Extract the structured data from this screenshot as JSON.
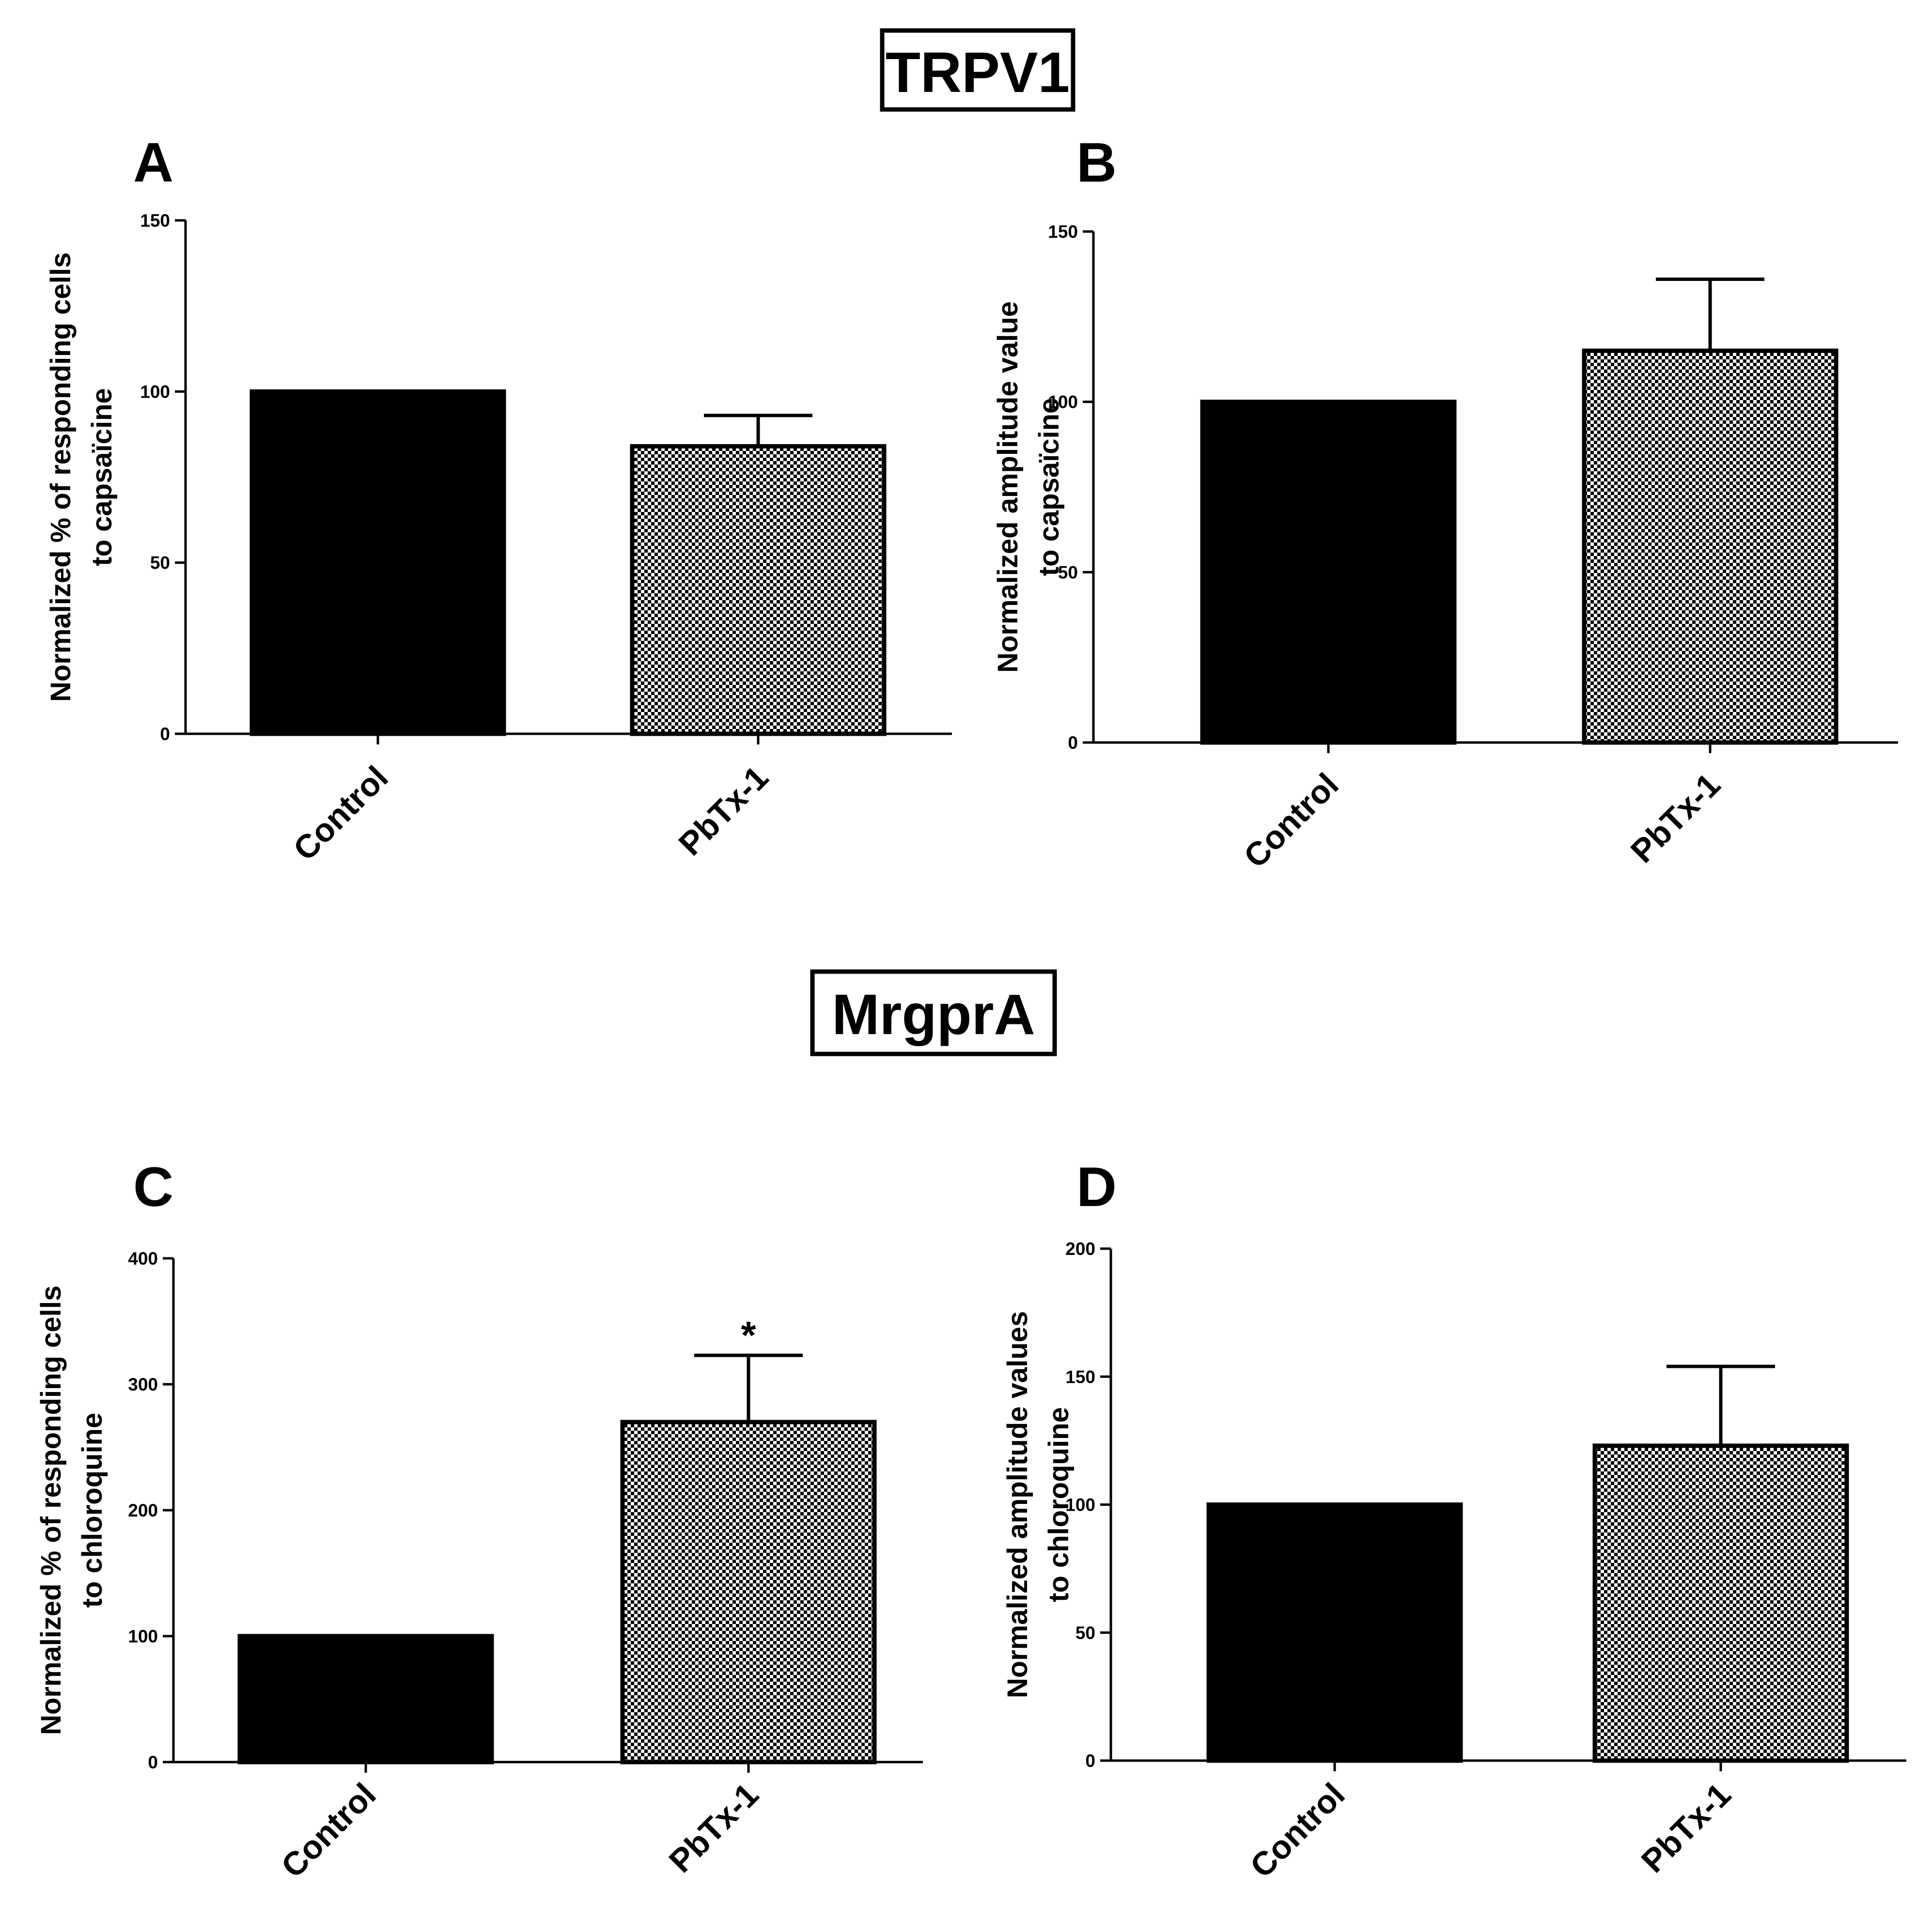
{
  "figure": {
    "sections": [
      {
        "title": "TRPV1"
      },
      {
        "title": "MrgprA"
      }
    ]
  },
  "chart_data": [
    {
      "panel": "A",
      "type": "bar",
      "section": "TRPV1",
      "categories": [
        "Control",
        "PbTx-1"
      ],
      "values": [
        100,
        84
      ],
      "error_plus": [
        null,
        9
      ],
      "bar_styles": [
        "solid-black",
        "checkerboard"
      ],
      "ylabel_lines": [
        "Normalized % of responding cells",
        "to capsaïcine"
      ],
      "ylim": [
        0,
        150
      ],
      "yticks": [
        0,
        50,
        100,
        150
      ],
      "annotations": []
    },
    {
      "panel": "B",
      "type": "bar",
      "section": "TRPV1",
      "categories": [
        "Control",
        "PbTx-1"
      ],
      "values": [
        100,
        115
      ],
      "error_plus": [
        null,
        21
      ],
      "bar_styles": [
        "solid-black",
        "checkerboard"
      ],
      "ylabel_lines": [
        "Normalized amplitude value",
        "to capsaïcine"
      ],
      "ylim": [
        0,
        150
      ],
      "yticks": [
        0,
        50,
        100,
        150
      ],
      "annotations": []
    },
    {
      "panel": "C",
      "type": "bar",
      "section": "MrgprA",
      "categories": [
        "Control",
        "PbTx-1"
      ],
      "values": [
        100,
        270
      ],
      "error_plus": [
        null,
        53
      ],
      "bar_styles": [
        "solid-black",
        "checkerboard"
      ],
      "ylabel_lines": [
        "Normalized % of responding cells",
        "to chloroquine"
      ],
      "ylim": [
        0,
        400
      ],
      "yticks": [
        0,
        100,
        200,
        300,
        400
      ],
      "annotations": [
        {
          "category": "PbTx-1",
          "text": "*"
        }
      ]
    },
    {
      "panel": "D",
      "type": "bar",
      "section": "MrgprA",
      "categories": [
        "Control",
        "PbTx-1"
      ],
      "values": [
        100,
        123
      ],
      "error_plus": [
        null,
        31
      ],
      "bar_styles": [
        "solid-black",
        "checkerboard"
      ],
      "ylabel_lines": [
        "Normalized amplitude values",
        "to chloroquine"
      ],
      "ylim": [
        0,
        200
      ],
      "yticks": [
        0,
        50,
        100,
        150,
        200
      ],
      "annotations": []
    }
  ]
}
